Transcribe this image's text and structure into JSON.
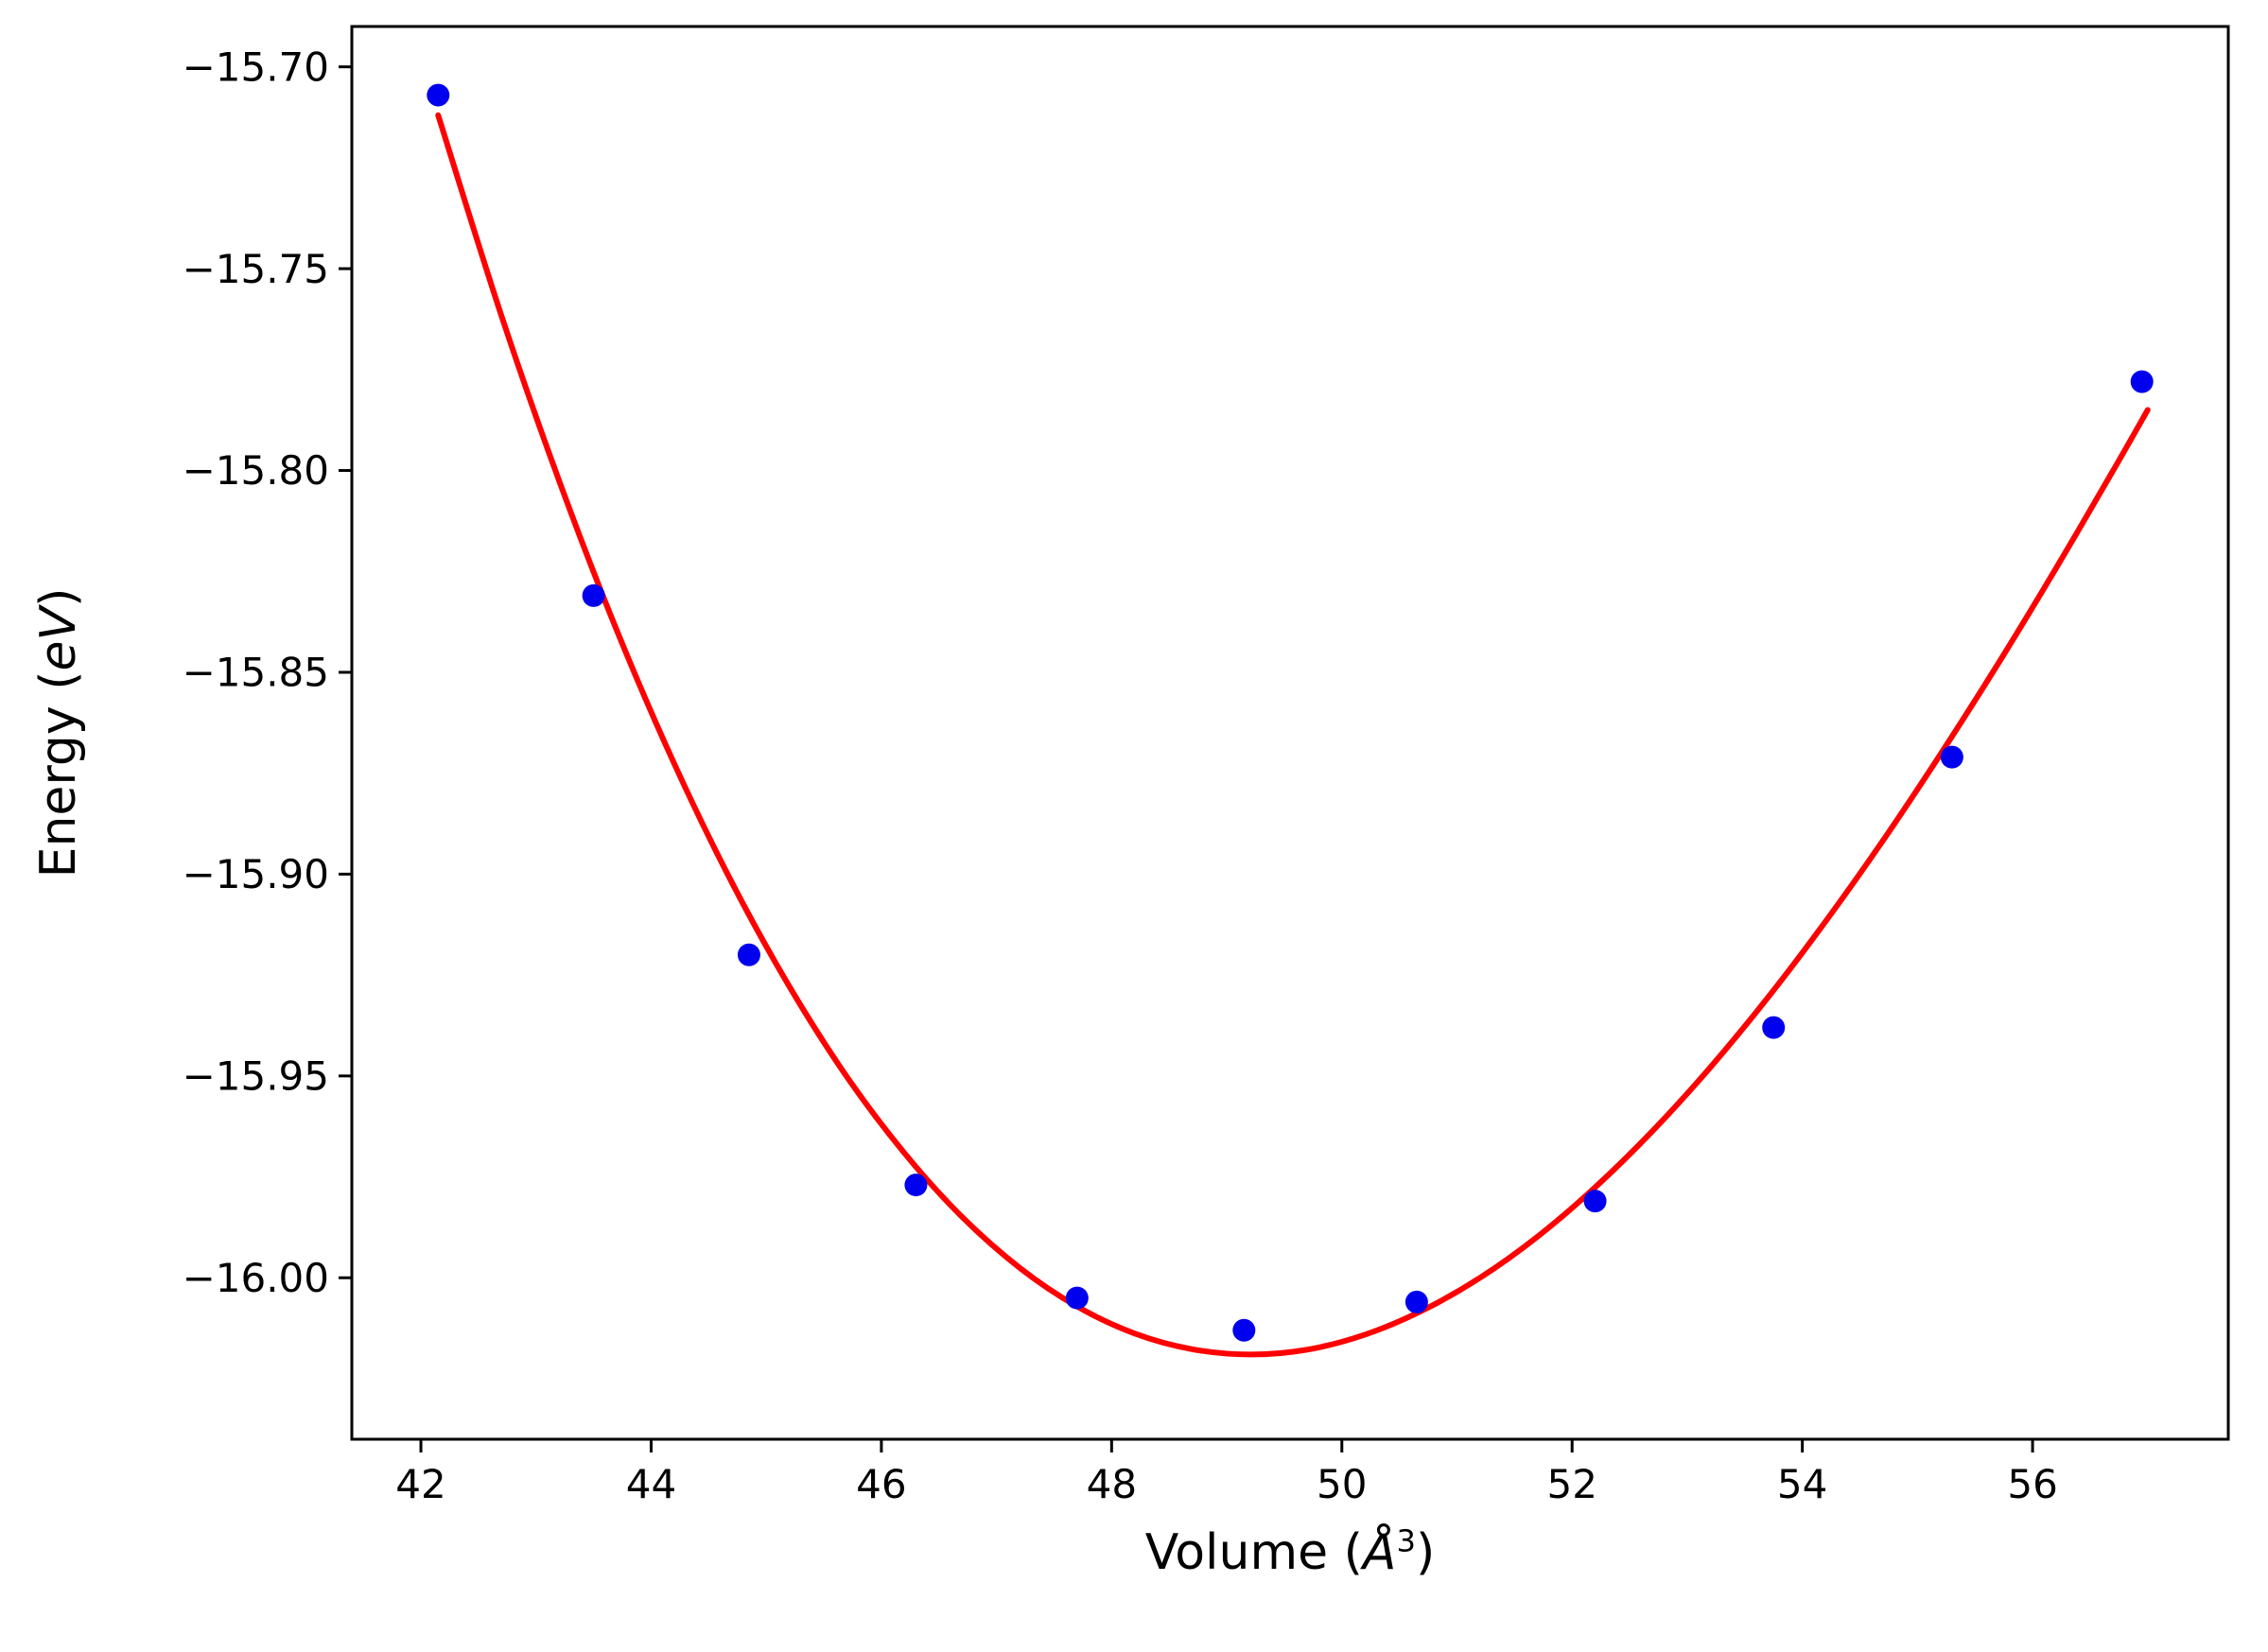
{
  "figure": {
    "background_color": "#ffffff"
  },
  "chart_data": {
    "type": "scatter",
    "xlabel": {
      "full": "Volume (Å³)",
      "prefix": "Volume (",
      "math_symbol": "Å",
      "superscript": "3",
      "suffix": ")"
    },
    "ylabel": {
      "full": "Energy (eV)",
      "prefix": "Energy (",
      "math_symbol": "eV",
      "suffix": ")"
    },
    "xlim": [
      41.4,
      57.7
    ],
    "ylim": [
      -16.04,
      -15.69
    ],
    "grid": false,
    "legend": null,
    "axes_color": "#000000",
    "text_color": "#000000",
    "x_ticks": {
      "values": [
        42,
        44,
        46,
        48,
        50,
        52,
        54,
        56
      ],
      "labels": [
        "42",
        "44",
        "46",
        "48",
        "50",
        "52",
        "54",
        "56"
      ]
    },
    "y_ticks": {
      "values": [
        -15.7,
        -15.75,
        -15.8,
        -15.85,
        -15.9,
        -15.95,
        -16.0
      ],
      "labels": [
        "−15.70",
        "−15.75",
        "−15.80",
        "−15.85",
        "−15.90",
        "−15.95",
        "−16.00"
      ]
    },
    "series": [
      {
        "name": "eos-fit-curve",
        "type": "line",
        "color": "#ff0000",
        "stroke_width": 6,
        "x": [
          42.15,
          42.7,
          43.2,
          43.7,
          44.2,
          44.7,
          45.2,
          45.7,
          46.2,
          46.7,
          47.2,
          47.7,
          48.2,
          48.7,
          49.2,
          49.7,
          50.2,
          50.7,
          51.2,
          51.7,
          52.2,
          52.7,
          53.2,
          53.7,
          54.2,
          54.7,
          55.2,
          55.7,
          56.2,
          56.7,
          57.0
        ],
        "y": [
          -15.712,
          -15.7617,
          -15.8025,
          -15.8395,
          -15.8726,
          -15.902,
          -15.9278,
          -15.9502,
          -15.9691,
          -15.9849,
          -15.9975,
          -16.0071,
          -16.0138,
          -16.0177,
          -16.019,
          -16.0178,
          -16.0141,
          -16.0081,
          -16.0,
          -15.9898,
          -15.9776,
          -15.9636,
          -15.9479,
          -15.9306,
          -15.9118,
          -15.8917,
          -15.8703,
          -15.8479,
          -15.8244,
          -15.8,
          -15.785
        ]
      },
      {
        "name": "calculated-energy-points",
        "type": "scatter",
        "color": "#0000ee",
        "marker": "circle",
        "marker_radius": 12,
        "x": [
          42.15,
          43.5,
          44.85,
          46.3,
          47.7,
          49.15,
          50.65,
          52.2,
          53.75,
          55.3,
          56.95
        ],
        "y": [
          -15.707,
          -15.831,
          -15.92,
          -15.977,
          -16.005,
          -16.013,
          -16.006,
          -15.981,
          -15.938,
          -15.871,
          -15.778
        ]
      }
    ]
  }
}
